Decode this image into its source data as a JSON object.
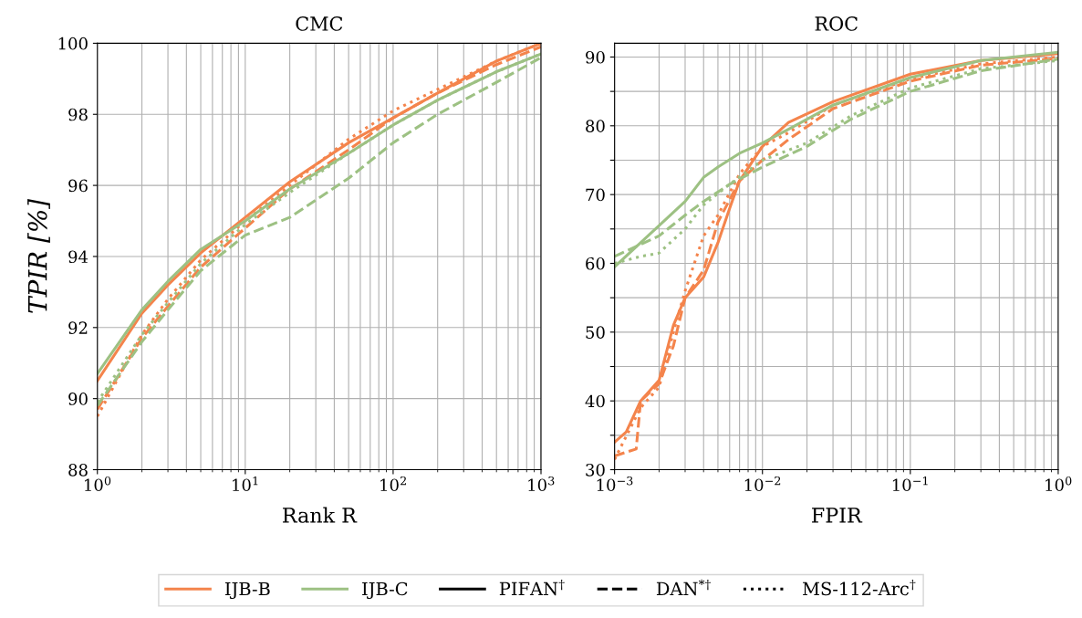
{
  "chart_data": [
    {
      "type": "line",
      "title": "CMC",
      "xlabel": "Rank R",
      "ylabel": "TPIR [%]",
      "log": "x",
      "grid": true,
      "legend": false,
      "xlim": [
        1,
        1000
      ],
      "xticks": [
        {
          "value": 1,
          "label": "10$^{0}$"
        },
        {
          "value": 10,
          "label": "10$^{1}$"
        },
        {
          "value": 100,
          "label": "10$^{2}$"
        },
        {
          "value": 1000,
          "label": "10$^{3}$"
        }
      ],
      "ylim": [
        88,
        100
      ],
      "yticks": [
        88,
        90,
        92,
        94,
        96,
        98,
        100
      ],
      "series": [
        {
          "color": "#f4844c",
          "line_style": "solid",
          "x": [
            1,
            2,
            3,
            5,
            10,
            20,
            50,
            100,
            200,
            500,
            1000
          ],
          "values": [
            90.5,
            92.4,
            93.2,
            94.1,
            95.1,
            96.1,
            97.2,
            97.9,
            98.6,
            99.5,
            100
          ]
        },
        {
          "color": "#f4844c",
          "line_style": "dashed",
          "x": [
            1,
            2,
            3,
            5,
            10,
            20,
            50,
            100,
            200,
            500,
            1000
          ],
          "values": [
            89.7,
            91.7,
            92.6,
            93.7,
            94.8,
            95.9,
            97.0,
            97.9,
            98.6,
            99.4,
            99.9
          ]
        },
        {
          "color": "#f4844c",
          "line_style": "dotted",
          "x": [
            1,
            2,
            3,
            5,
            10,
            20,
            50,
            100,
            200,
            500,
            1000
          ],
          "values": [
            89.5,
            91.8,
            92.8,
            93.9,
            95.0,
            96.0,
            97.3,
            98.1,
            98.7,
            99.5,
            100
          ]
        },
        {
          "color": "#9dc183",
          "line_style": "solid",
          "x": [
            1,
            2,
            3,
            5,
            10,
            20,
            50,
            100,
            200,
            500,
            1000
          ],
          "values": [
            90.7,
            92.5,
            93.3,
            94.2,
            95.0,
            95.9,
            96.9,
            97.7,
            98.4,
            99.2,
            99.7
          ]
        },
        {
          "color": "#9dc183",
          "line_style": "dashed",
          "x": [
            1,
            2,
            3,
            5,
            10,
            20,
            50,
            100,
            200,
            500,
            1000
          ],
          "values": [
            89.8,
            91.6,
            92.5,
            93.6,
            94.6,
            95.1,
            96.2,
            97.2,
            98.0,
            98.9,
            99.6
          ]
        },
        {
          "color": "#9dc183",
          "line_style": "dotted",
          "x": [
            1,
            2,
            3,
            5,
            10,
            20,
            50,
            100,
            200,
            500,
            1000
          ],
          "values": [
            89.9,
            91.8,
            92.7,
            93.8,
            94.9,
            95.8,
            96.9,
            97.7,
            98.4,
            99.2,
            99.7
          ]
        }
      ]
    },
    {
      "type": "line",
      "title": "ROC",
      "xlabel": "FPIR",
      "log": "x",
      "grid": true,
      "legend": false,
      "xlim": [
        0.001,
        1
      ],
      "xticks": [
        {
          "value": 0.001,
          "label": "10$^{−3}$"
        },
        {
          "value": 0.01,
          "label": "10$^{−2}$"
        },
        {
          "value": 0.1,
          "label": "10$^{−1}$"
        },
        {
          "value": 1,
          "label": "10$^{0}$"
        }
      ],
      "ylim": [
        30,
        92
      ],
      "yticks": [
        30,
        {
          "value": 35,
          "label": null
        },
        40,
        {
          "value": 45,
          "label": null
        },
        50,
        {
          "value": 55,
          "label": null
        },
        60,
        {
          "value": 65,
          "label": null
        },
        70,
        {
          "value": 75,
          "label": null
        },
        80,
        {
          "value": 85,
          "label": null
        },
        90
      ],
      "series": [
        {
          "color": "#f4844c",
          "line_style": "solid",
          "x": [
            0.001,
            0.0012,
            0.0015,
            0.002,
            0.0025,
            0.003,
            0.004,
            0.005,
            0.006,
            0.007,
            0.01,
            0.015,
            0.03,
            0.1,
            0.3,
            1
          ],
          "values": [
            34,
            35.5,
            40,
            43,
            51,
            55,
            58,
            63,
            68,
            72,
            77,
            80.5,
            83.5,
            87.5,
            89.5,
            90.5
          ]
        },
        {
          "color": "#f4844c",
          "line_style": "dashed",
          "x": [
            0.001,
            0.0014,
            0.0015,
            0.002,
            0.0025,
            0.003,
            0.004,
            0.005,
            0.007,
            0.01,
            0.015,
            0.03,
            0.1,
            0.3,
            1
          ],
          "values": [
            32,
            33,
            40,
            42.5,
            48,
            55,
            59,
            66,
            72,
            75,
            78,
            82.5,
            86.5,
            88.8,
            89.8
          ]
        },
        {
          "color": "#f4844c",
          "line_style": "dotted",
          "x": [
            0.001,
            0.0015,
            0.002,
            0.0025,
            0.003,
            0.004,
            0.005,
            0.007,
            0.01,
            0.015,
            0.03,
            0.1,
            0.3,
            1
          ],
          "values": [
            31.5,
            39,
            42,
            50,
            56,
            64,
            67,
            73,
            77,
            79,
            83,
            86.8,
            89,
            90
          ]
        },
        {
          "color": "#9dc183",
          "line_style": "solid",
          "x": [
            0.001,
            0.0015,
            0.002,
            0.003,
            0.004,
            0.005,
            0.007,
            0.01,
            0.015,
            0.03,
            0.1,
            0.3,
            1
          ],
          "values": [
            59.5,
            63,
            65.5,
            69,
            72.5,
            74,
            76,
            77.5,
            79.5,
            83,
            87,
            89.5,
            90.7
          ]
        },
        {
          "color": "#9dc183",
          "line_style": "dashed",
          "x": [
            0.001,
            0.002,
            0.003,
            0.004,
            0.006,
            0.01,
            0.02,
            0.04,
            0.1,
            0.3,
            1
          ],
          "values": [
            61,
            64,
            67,
            69,
            71.5,
            74,
            77,
            81,
            85,
            88,
            89.7
          ]
        },
        {
          "color": "#9dc183",
          "line_style": "dotted",
          "x": [
            0.001,
            0.0015,
            0.002,
            0.003,
            0.004,
            0.006,
            0.01,
            0.02,
            0.04,
            0.1,
            0.3,
            1
          ],
          "values": [
            60,
            61,
            61.5,
            65,
            68.5,
            71.5,
            75,
            77.5,
            81.5,
            85.5,
            88.3,
            89.5
          ]
        }
      ]
    },
    {
      "type": "other",
      "legend": "bottom",
      "series": [
        {
          "name": "IJB-B",
          "color": "#f4844c",
          "line_style": "solid"
        },
        {
          "name": "IJB-C",
          "color": "#9dc183",
          "line_style": "solid"
        },
        {
          "name": "PIFAN$^{†}$",
          "color": "#000000",
          "line_style": "solid"
        },
        {
          "name": "DAN$^{*†}$",
          "color": "#000000",
          "line_style": "dashed"
        },
        {
          "name": "MS-112-Arc$^{†}$",
          "color": "#000000",
          "line_style": "dotted"
        }
      ]
    }
  ]
}
